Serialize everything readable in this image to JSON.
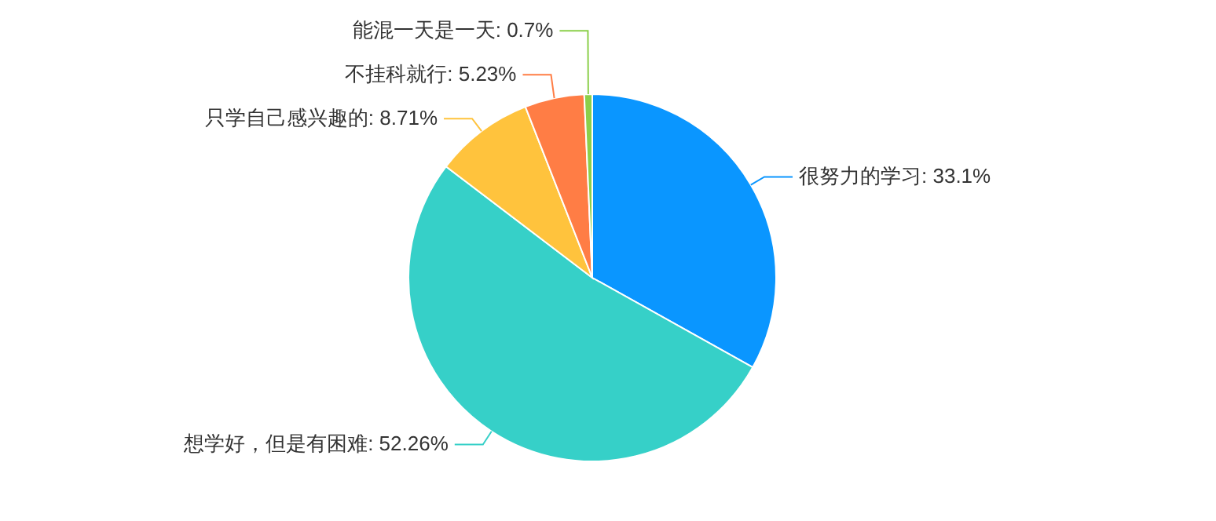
{
  "chart_data": {
    "type": "pie",
    "categories": [
      "很努力的学习",
      "想学好，但是有困难",
      "只学自己感兴趣的",
      "不挂科就行",
      "能混一天是一天"
    ],
    "values": [
      33.1,
      52.26,
      8.71,
      5.23,
      0.7
    ],
    "value_labels": [
      "33.1%",
      "52.26%",
      "8.71%",
      "5.23%",
      "0.7%"
    ],
    "colors": [
      "#0a96ff",
      "#36d0c8",
      "#ffc33d",
      "#ff7d45",
      "#8bcf4a"
    ]
  }
}
